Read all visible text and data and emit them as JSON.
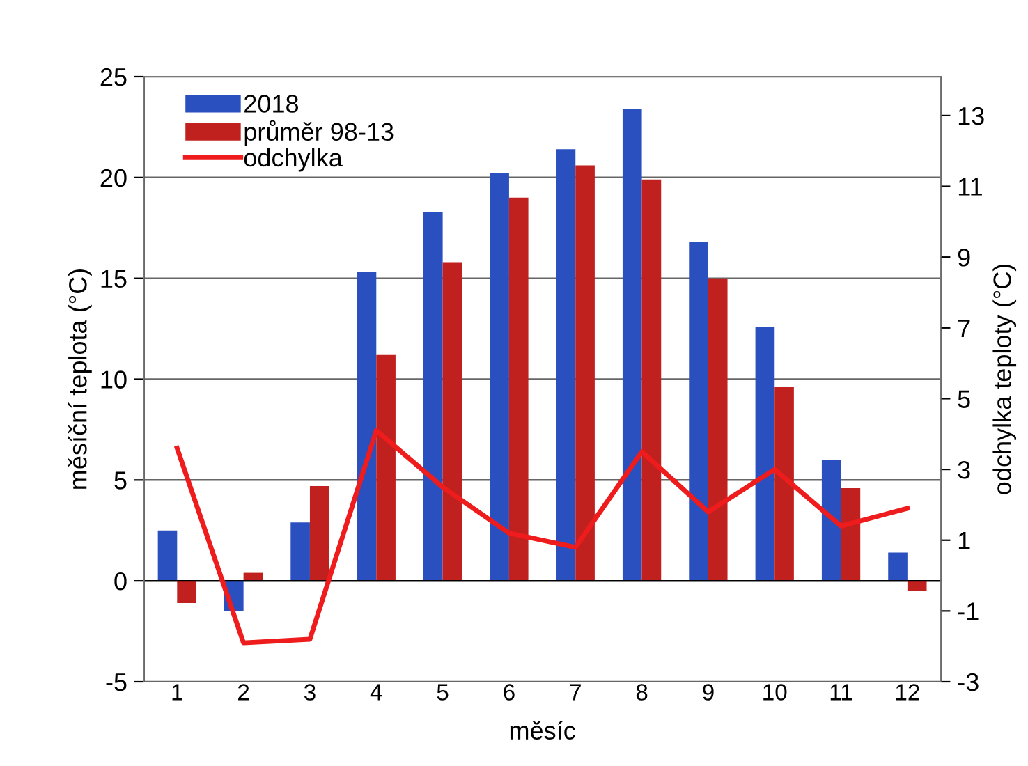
{
  "chart_data": {
    "type": "bar",
    "xlabel": "měsíc",
    "ylabel": "měsíční teplota (°C)",
    "y2label": "odchylka teploty (°C)",
    "categories": [
      "1",
      "2",
      "3",
      "4",
      "5",
      "6",
      "7",
      "8",
      "9",
      "10",
      "11",
      "12"
    ],
    "series": [
      {
        "name": "2018",
        "type": "bar",
        "color": "#2a4fbf",
        "values": [
          2.5,
          -1.5,
          2.9,
          15.3,
          18.3,
          20.2,
          21.4,
          23.4,
          16.8,
          12.6,
          6.0,
          1.4
        ]
      },
      {
        "name": "průměr 98-13",
        "type": "bar",
        "color": "#c0201e",
        "values": [
          -1.1,
          0.4,
          4.7,
          11.2,
          15.8,
          19.0,
          20.6,
          19.9,
          15.0,
          9.6,
          4.6,
          -0.5
        ]
      },
      {
        "name": "odchylka",
        "type": "line",
        "axis": "y2",
        "color": "#ee1c1c",
        "values": [
          3.6,
          -1.9,
          -1.8,
          4.1,
          2.5,
          1.2,
          0.8,
          3.5,
          1.8,
          3.0,
          1.4,
          1.9
        ]
      }
    ],
    "ylim": [
      -5,
      25
    ],
    "yticks": [
      -5,
      0,
      5,
      10,
      15,
      20,
      25
    ],
    "y2lim": [
      -3,
      14.1
    ],
    "y2ticks": [
      -3,
      -1,
      1,
      3,
      5,
      7,
      9,
      11,
      13
    ],
    "grid": "y",
    "legend": "top left",
    "marker": "none",
    "line_style": "solid"
  }
}
